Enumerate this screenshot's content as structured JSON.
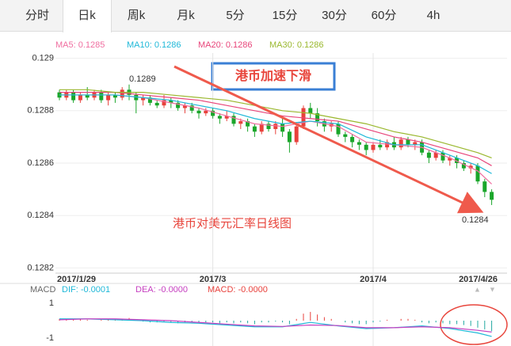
{
  "tabs": [
    "分时",
    "日k",
    "周k",
    "月k",
    "5分",
    "15分",
    "30分",
    "60分",
    "4h"
  ],
  "active_tab": 1,
  "chart_data": {
    "type": "candlestick",
    "categories": [
      "2017/1/29",
      null,
      null,
      null,
      null,
      null,
      null,
      null,
      null,
      null,
      null,
      null,
      null,
      null,
      null,
      null,
      null,
      null,
      null,
      null,
      null,
      null,
      "2017/3",
      null,
      null,
      null,
      null,
      null,
      null,
      null,
      null,
      null,
      null,
      null,
      null,
      null,
      null,
      null,
      null,
      null,
      null,
      null,
      null,
      null,
      null,
      "2017/4",
      null,
      null,
      null,
      null,
      null,
      null,
      null,
      null,
      null,
      null,
      null,
      null,
      null,
      null,
      null,
      null,
      "2017/4/26"
    ],
    "open": [
      0.12887,
      0.12885,
      0.12887,
      0.12884,
      0.12886,
      0.12885,
      0.12887,
      0.12884,
      0.12886,
      0.12885,
      0.12888,
      0.12886,
      0.12884,
      0.12885,
      0.12883,
      0.12882,
      0.12884,
      0.12883,
      0.12881,
      0.12882,
      0.1288,
      0.12879,
      0.1288,
      0.12878,
      0.12877,
      0.12878,
      0.12875,
      0.12876,
      0.12874,
      0.12872,
      0.12875,
      0.12873,
      0.12875,
      0.12872,
      0.12868,
      0.12874,
      0.12881,
      0.12879,
      0.12876,
      0.12874,
      0.12875,
      0.12871,
      0.1287,
      0.12868,
      0.12867,
      0.12865,
      0.12867,
      0.12866,
      0.12868,
      0.12866,
      0.12869,
      0.12867,
      0.12868,
      0.12864,
      0.12862,
      0.12864,
      0.12861,
      0.12862,
      0.1286,
      0.12858,
      0.12859,
      0.12853,
      0.12849
    ],
    "close": [
      0.12885,
      0.12887,
      0.12884,
      0.12886,
      0.12885,
      0.12887,
      0.12884,
      0.12886,
      0.12885,
      0.12888,
      0.12886,
      0.12884,
      0.12885,
      0.12883,
      0.12882,
      0.12884,
      0.12883,
      0.12881,
      0.12882,
      0.1288,
      0.12879,
      0.1288,
      0.12878,
      0.12877,
      0.12878,
      0.12875,
      0.12876,
      0.12874,
      0.12872,
      0.12875,
      0.12873,
      0.12875,
      0.12872,
      0.12868,
      0.12874,
      0.12881,
      0.12879,
      0.12876,
      0.12874,
      0.12875,
      0.12871,
      0.1287,
      0.12868,
      0.12867,
      0.12865,
      0.12867,
      0.12866,
      0.12868,
      0.12866,
      0.12869,
      0.12867,
      0.12868,
      0.12864,
      0.12862,
      0.12864,
      0.12861,
      0.12862,
      0.1286,
      0.12858,
      0.12859,
      0.12853,
      0.12849,
      0.12846
    ],
    "high": [
      0.12888,
      0.12888,
      0.12888,
      0.12887,
      0.12889,
      0.12888,
      0.12888,
      0.12887,
      0.12887,
      0.12889,
      0.1289,
      0.12887,
      0.12886,
      0.12886,
      0.12884,
      0.12886,
      0.12885,
      0.12884,
      0.12883,
      0.12883,
      0.12881,
      0.12881,
      0.12881,
      0.12879,
      0.1288,
      0.12879,
      0.12877,
      0.12877,
      0.12875,
      0.12876,
      0.12876,
      0.12876,
      0.12877,
      0.12873,
      0.12875,
      0.12882,
      0.12883,
      0.12881,
      0.12877,
      0.12876,
      0.12876,
      0.12872,
      0.12871,
      0.12869,
      0.12868,
      0.12868,
      0.12869,
      0.12869,
      0.1287,
      0.1287,
      0.1287,
      0.12869,
      0.12869,
      0.12865,
      0.12865,
      0.12865,
      0.12863,
      0.12863,
      0.12861,
      0.1286,
      0.1286,
      0.12854,
      0.1285
    ],
    "low": [
      0.12884,
      0.12884,
      0.12883,
      0.12883,
      0.12884,
      0.12884,
      0.12883,
      0.12882,
      0.12883,
      0.12884,
      0.12884,
      0.12879,
      0.12882,
      0.12882,
      0.12881,
      0.12881,
      0.12881,
      0.1288,
      0.12879,
      0.12879,
      0.12877,
      0.12878,
      0.12877,
      0.12875,
      0.12876,
      0.12874,
      0.12873,
      0.12872,
      0.1287,
      0.12871,
      0.12872,
      0.12871,
      0.1287,
      0.12864,
      0.12867,
      0.12873,
      0.12877,
      0.12874,
      0.12872,
      0.12872,
      0.1287,
      0.12868,
      0.12866,
      0.12865,
      0.12863,
      0.12864,
      0.12865,
      0.12865,
      0.12865,
      0.12865,
      0.12866,
      0.12865,
      0.12863,
      0.1286,
      0.12861,
      0.1286,
      0.12859,
      0.12858,
      0.12857,
      0.12856,
      0.12852,
      0.12847,
      0.12844
    ],
    "up_color": "#e8413c",
    "down_color": "#1aa62a",
    "series": [
      {
        "name": "MA5: 0.1285",
        "color": "#f06ea0",
        "x": [
          0,
          4,
          8,
          12,
          16,
          20,
          24,
          28,
          32,
          36,
          40,
          44,
          48,
          52,
          56,
          60,
          62
        ],
        "values": [
          0.12886,
          0.12886,
          0.12886,
          0.12885,
          0.12883,
          0.12881,
          0.12878,
          0.12875,
          0.12874,
          0.12876,
          0.12874,
          0.12868,
          0.12867,
          0.12866,
          0.12862,
          0.12857,
          0.12852
        ]
      },
      {
        "name": "MA10: 0.1286",
        "color": "#1fb8d8",
        "x": [
          0,
          4,
          8,
          12,
          16,
          20,
          24,
          28,
          32,
          36,
          40,
          44,
          48,
          52,
          56,
          60,
          62
        ],
        "values": [
          0.12886,
          0.12886,
          0.12886,
          0.12885,
          0.12884,
          0.12882,
          0.1288,
          0.12877,
          0.12875,
          0.12876,
          0.12875,
          0.1287,
          0.12867,
          0.12867,
          0.12863,
          0.12859,
          0.12856
        ]
      },
      {
        "name": "MA20: 0.1286",
        "color": "#e8457a",
        "x": [
          0,
          4,
          8,
          12,
          16,
          20,
          24,
          28,
          32,
          36,
          40,
          44,
          48,
          52,
          56,
          60,
          62
        ],
        "values": [
          0.12887,
          0.12887,
          0.12887,
          0.12886,
          0.12885,
          0.12884,
          0.12882,
          0.1288,
          0.12878,
          0.12877,
          0.12876,
          0.12873,
          0.1287,
          0.12868,
          0.12865,
          0.12862,
          0.12859
        ]
      },
      {
        "name": "MA30: 0.1286",
        "color": "#9ab82e",
        "x": [
          0,
          4,
          8,
          12,
          16,
          20,
          24,
          28,
          32,
          36,
          40,
          44,
          48,
          52,
          56,
          60,
          62
        ],
        "values": [
          0.12888,
          0.12888,
          0.12887,
          0.12887,
          0.12886,
          0.12885,
          0.12884,
          0.12882,
          0.1288,
          0.12879,
          0.12877,
          0.12875,
          0.12872,
          0.1287,
          0.12867,
          0.12864,
          0.12862
        ]
      }
    ],
    "ylim": [
      0.12818,
      0.12902
    ],
    "yticks": [
      0.129,
      0.1288,
      0.1286,
      0.1284,
      0.1282
    ],
    "grid": true,
    "high_label": 0.1289,
    "low_label": 0.1284,
    "annotation_box": "港币加速下滑",
    "annotation_text": "港币对美元汇率日线图",
    "macd": {
      "label": "MACD",
      "ylim": [
        -1.4,
        1.4
      ],
      "yticks": [
        1,
        -1
      ],
      "series": [
        {
          "name": "DIF: -0.0001",
          "color": "#1fb8d8",
          "x": [
            0,
            4,
            8,
            12,
            16,
            20,
            24,
            28,
            32,
            36,
            40,
            44,
            48,
            52,
            56,
            60,
            62
          ],
          "values": [
            0.1,
            0.1,
            0.05,
            0,
            -0.1,
            -0.15,
            -0.25,
            -0.35,
            -0.35,
            -0.1,
            -0.3,
            -0.45,
            -0.4,
            -0.3,
            -0.45,
            -0.7,
            -0.9
          ]
        },
        {
          "name": "DEA: -0.0000",
          "color": "#c640c0",
          "x": [
            0,
            4,
            8,
            12,
            16,
            20,
            24,
            28,
            32,
            36,
            40,
            44,
            48,
            52,
            56,
            60,
            62
          ],
          "values": [
            0.05,
            0.1,
            0.1,
            0.05,
            0,
            -0.1,
            -0.2,
            -0.3,
            -0.33,
            -0.25,
            -0.28,
            -0.4,
            -0.4,
            -0.35,
            -0.4,
            -0.55,
            -0.65
          ]
        }
      ],
      "bars": {
        "name": "MACD: -0.0000",
        "color": "#e8413c",
        "up_color": "#e8413c",
        "down_color": "#22a8a0",
        "values": [
          0.1,
          0.1,
          0.05,
          0.1,
          0.05,
          0,
          0.05,
          0.1,
          0.05,
          0.1,
          0.15,
          0,
          -0.05,
          -0.1,
          -0.1,
          -0.05,
          -0.1,
          -0.15,
          -0.1,
          -0.1,
          -0.15,
          -0.1,
          -0.1,
          -0.15,
          -0.1,
          -0.15,
          -0.1,
          -0.15,
          -0.2,
          -0.1,
          -0.1,
          -0.05,
          -0.1,
          -0.2,
          0.1,
          0.4,
          0.5,
          0.35,
          0.2,
          0.1,
          0,
          -0.1,
          -0.15,
          -0.2,
          -0.2,
          -0.1,
          -0.05,
          0.05,
          0,
          0.1,
          0.1,
          0.05,
          -0.1,
          -0.15,
          -0.1,
          -0.15,
          -0.2,
          -0.2,
          -0.25,
          -0.3,
          -0.4,
          -0.5,
          -0.6
        ]
      }
    }
  }
}
